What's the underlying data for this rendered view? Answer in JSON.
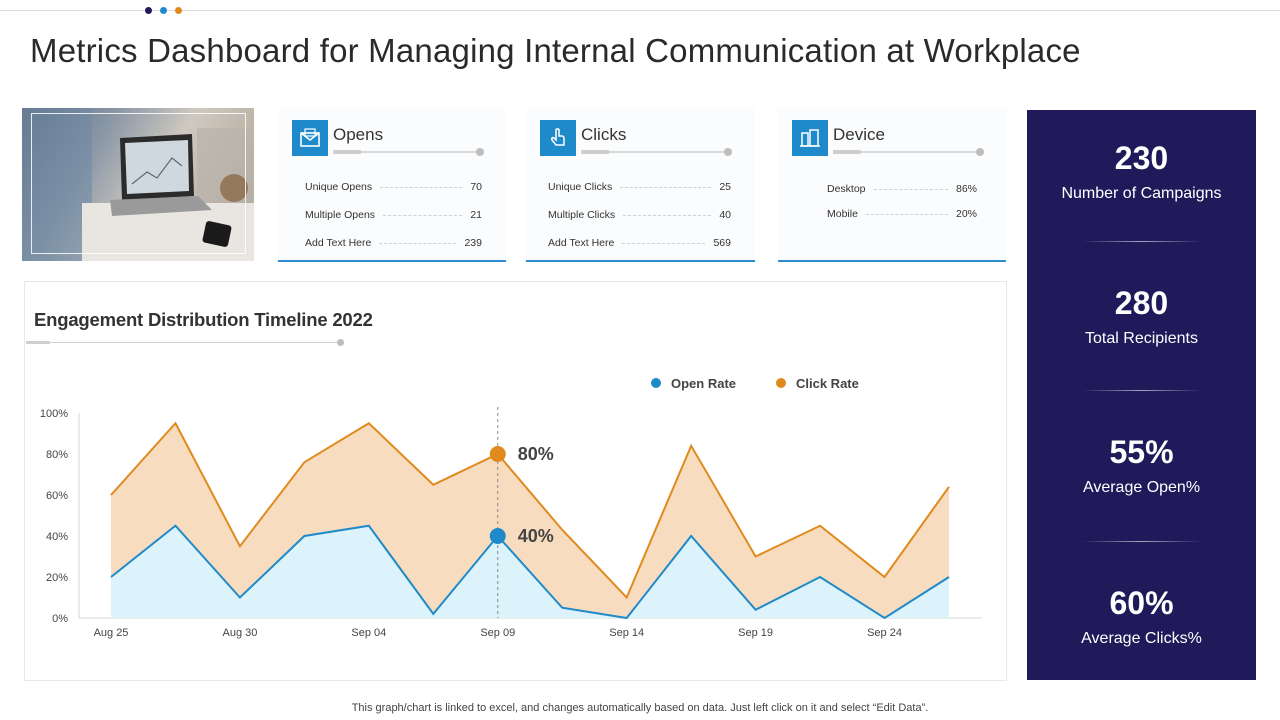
{
  "page": {
    "title": "Metrics Dashboard for Managing Internal Communication at Workplace",
    "footnote": "This graph/chart is linked to excel,  and changes automatically based on data. Just left click on it and select “Edit Data”.",
    "dot_colors": [
      "#201a5a",
      "#1f8ac9",
      "#e08a1e"
    ]
  },
  "cards": [
    {
      "title": "Opens",
      "icon": "envelope-icon",
      "rows": [
        {
          "label": "Unique Opens",
          "value": "70"
        },
        {
          "label": "Multiple Opens",
          "value": "21"
        },
        {
          "label": "Add Text Here",
          "value": "239"
        }
      ]
    },
    {
      "title": "Clicks",
      "icon": "pointer-hand-icon",
      "rows": [
        {
          "label": "Unique Clicks",
          "value": "25"
        },
        {
          "label": "Multiple Clicks",
          "value": "40"
        },
        {
          "label": "Add Text Here",
          "value": "569"
        }
      ]
    },
    {
      "title": "Device",
      "icon": "device-icon",
      "rows": [
        {
          "label": "Desktop",
          "value": "86%"
        },
        {
          "label": "Mobile",
          "value": "20%"
        }
      ]
    }
  ],
  "stats": [
    {
      "value": "230",
      "label": "Number of Campaigns"
    },
    {
      "value": "280",
      "label": "Total Recipients"
    },
    {
      "value": "55%",
      "label": "Average Open%"
    },
    {
      "value": "60%",
      "label": "Average Clicks%"
    }
  ],
  "colors": {
    "accent_blue": "#1f8ac9",
    "open_line": "#1f8ac9",
    "open_fill": "#dcf3fb",
    "click_line": "#e08a1e",
    "click_fill": "#f8dcc0",
    "stats_bg": "#201a5a"
  },
  "chart_data": {
    "type": "area",
    "title": "Engagement Distribution Timeline 2022",
    "xlabel": "",
    "ylabel": "",
    "ylim": [
      0,
      100
    ],
    "y_ticks": [
      "0%",
      "20%",
      "40%",
      "60%",
      "80%",
      "100%"
    ],
    "x_tick_labels": [
      "Aug 25",
      "Aug 30",
      "Sep 04",
      "Sep 09",
      "Sep 14",
      "Sep 19",
      "Sep 24"
    ],
    "x_tick_positions": [
      0,
      2,
      4,
      6,
      8,
      10,
      12
    ],
    "x": [
      0,
      1,
      2,
      3,
      4,
      5,
      6,
      7,
      8,
      9,
      10,
      11,
      12,
      13
    ],
    "series": [
      {
        "name": "Open Rate",
        "values": [
          20,
          45,
          10,
          40,
          45,
          2,
          40,
          5,
          0,
          40,
          4,
          20,
          0,
          20
        ]
      },
      {
        "name": "Click Rate",
        "values": [
          60,
          95,
          35,
          76,
          95,
          65,
          80,
          43,
          10,
          84,
          30,
          45,
          20,
          64
        ]
      }
    ],
    "highlight": {
      "index": 6,
      "labels": [
        "40%",
        "80%"
      ]
    },
    "legend_position": "top-right",
    "grid": false
  }
}
